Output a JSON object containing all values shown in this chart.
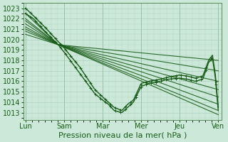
{
  "bg_color": "#cce8d8",
  "grid_color": "#a8ccb8",
  "line_color": "#1a5c1a",
  "marker_color": "#1a5c1a",
  "xlabel": "Pression niveau de la mer( hPa )",
  "xlabel_fontsize": 8,
  "tick_fontsize": 7,
  "ylim": [
    1012.3,
    1023.5
  ],
  "yticks": [
    1013,
    1014,
    1015,
    1016,
    1017,
    1018,
    1019,
    1020,
    1021,
    1022,
    1023
  ],
  "xtick_labels": [
    "Lun",
    "Sam",
    "Mar",
    "Mer",
    "Jeu",
    "Ven"
  ],
  "xtick_positions": [
    0,
    1,
    2,
    3,
    4,
    5
  ],
  "ensemble_starts": [
    1022.5,
    1022.0,
    1021.8,
    1021.5,
    1021.2,
    1021.0,
    1020.8,
    1020.5
  ],
  "ensemble_ends": [
    1018.0,
    1017.0,
    1016.0,
    1015.2,
    1014.5,
    1013.8,
    1013.2,
    1012.8
  ],
  "ensemble_conv_x": 0.85,
  "ensemble_conv_y": 1019.5
}
